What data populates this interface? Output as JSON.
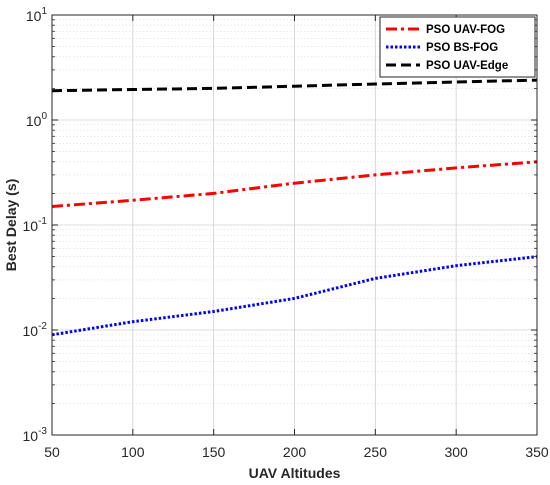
{
  "chart_data": {
    "type": "line",
    "title": "",
    "xlabel": "UAV Altitudes",
    "ylabel": "Best Delay (s)",
    "xlim": [
      50,
      350
    ],
    "ylim": [
      0.001,
      10
    ],
    "yscale": "log",
    "grid": true,
    "legend_position": "top-right",
    "x_ticks": [
      "50",
      "100",
      "150",
      "200",
      "250",
      "300",
      "350"
    ],
    "y_ticks": [
      {
        "base": "10",
        "exp": "-3"
      },
      {
        "base": "10",
        "exp": "-2"
      },
      {
        "base": "10",
        "exp": "-1"
      },
      {
        "base": "10",
        "exp": "0"
      },
      {
        "base": "10",
        "exp": "1"
      }
    ],
    "x": [
      50,
      100,
      150,
      200,
      250,
      300,
      350
    ],
    "series": [
      {
        "name": "PSO UAV-FOG",
        "color": "#ff0000",
        "style": "dash-dot",
        "values": [
          0.15,
          0.172,
          0.2,
          0.25,
          0.3,
          0.35,
          0.4
        ]
      },
      {
        "name": "PSO BS-FOG",
        "color": "#0000ff",
        "style": "dotted",
        "values": [
          0.009,
          0.012,
          0.015,
          0.02,
          0.031,
          0.041,
          0.05
        ]
      },
      {
        "name": "PSO UAV-Edge",
        "color": "#000000",
        "style": "dashed",
        "values": [
          1.9,
          1.95,
          2.0,
          2.1,
          2.2,
          2.3,
          2.4
        ]
      }
    ]
  }
}
